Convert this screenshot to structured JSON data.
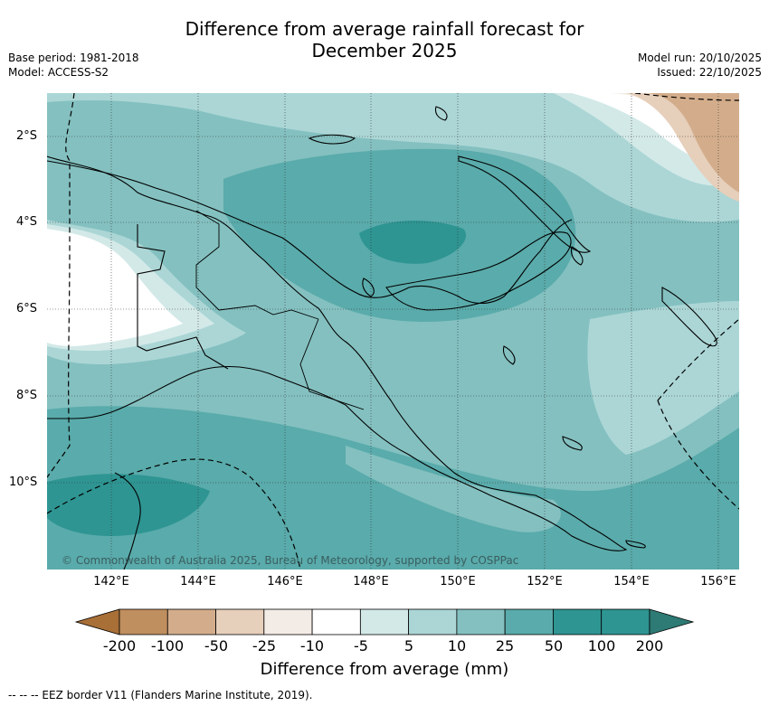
{
  "title_line1": "Difference from average rainfall forecast for",
  "title_line2": "December 2025",
  "meta_left": [
    "Base period: 1981-2018",
    "Model: ACCESS-S2"
  ],
  "meta_right": [
    "Model run: 20/10/2025",
    "Issued: 22/10/2025"
  ],
  "lat_labels": [
    "2°S",
    "4°S",
    "6°S",
    "8°S",
    "10°S"
  ],
  "lon_labels": [
    "142°E",
    "144°E",
    "146°E",
    "148°E",
    "150°E",
    "152°E",
    "154°E",
    "156°E"
  ],
  "copyright": "© Commonwealth of Australia 2025, Bureau of Meteorology, supported by COSPPac",
  "colorbar": {
    "ticks": [
      "-200",
      "-100",
      "-50",
      "-25",
      "-10",
      "-5",
      "5",
      "10",
      "25",
      "50",
      "100",
      "200"
    ],
    "colors": [
      "#a86f37",
      "#c08f5f",
      "#d3ad8b",
      "#e6cfbb",
      "#f3ebe5",
      "#ffffff",
      "#d3e9e8",
      "#acd6d6",
      "#84c0c0",
      "#5aabab",
      "#2e9592",
      "#2e7a74"
    ],
    "title": "Difference from average (mm)"
  },
  "footnote": "-- -- -- EEZ border V11 (Flanders Marine Institute, 2019)."
}
